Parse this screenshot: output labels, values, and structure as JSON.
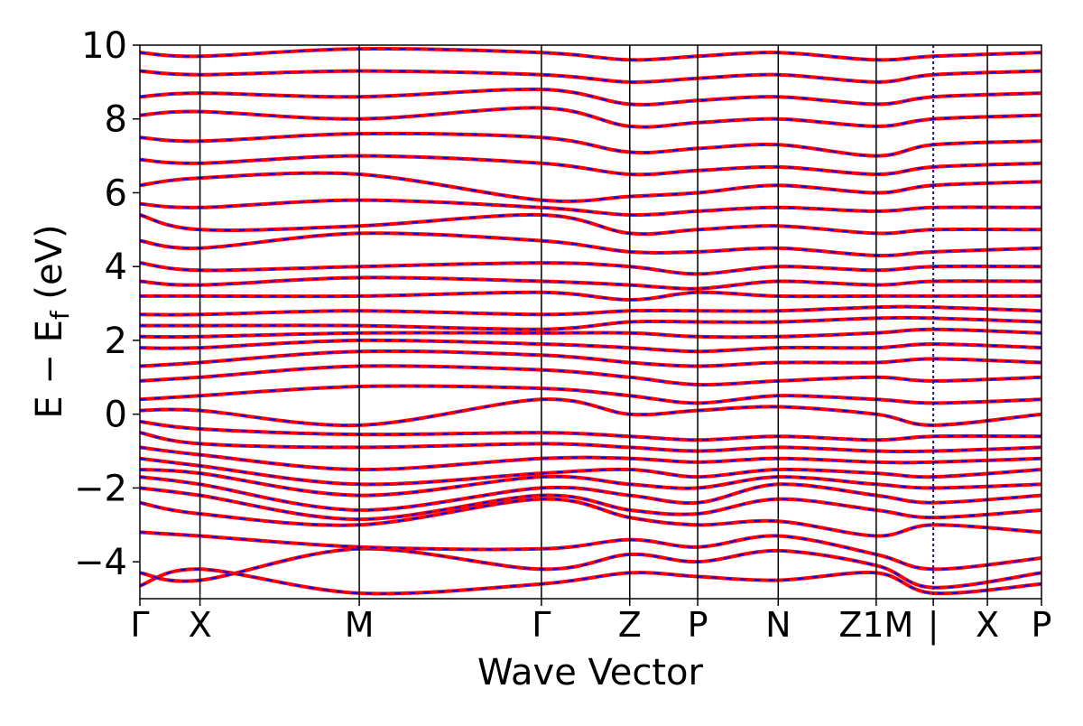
{
  "chart_data": {
    "type": "line",
    "xlabel": "Wave Vector",
    "ylabel": "E − E",
    "ylabel_sub": "f",
    "ylabel_unit": " (eV)",
    "ylim": [
      -5,
      10
    ],
    "yticks": [
      -4,
      -2,
      0,
      2,
      4,
      6,
      8,
      10
    ],
    "ytick_labels": [
      "−4",
      "−2",
      "0",
      "2",
      "4",
      "6",
      "8",
      "10"
    ],
    "xlim": [
      0,
      15
    ],
    "kpoints": [
      {
        "pos": 0.0,
        "label": "Γ"
      },
      {
        "pos": 1.0,
        "label": "X"
      },
      {
        "pos": 3.65,
        "label": "M"
      },
      {
        "pos": 6.68,
        "label": "Γ"
      },
      {
        "pos": 8.15,
        "label": "Z"
      },
      {
        "pos": 9.28,
        "label": "P"
      },
      {
        "pos": 10.62,
        "label": "N"
      },
      {
        "pos": 12.25,
        "label": "Z1M"
      },
      {
        "pos": 13.2,
        "label": "|"
      },
      {
        "pos": 14.1,
        "label": "X"
      },
      {
        "pos": 15.0,
        "label": "P"
      }
    ],
    "series": [
      {
        "color": "#ff0000",
        "style": "solid"
      },
      {
        "color": "#0000ff",
        "style": "dashed"
      }
    ],
    "bands": [
      {
        "x": [
          0,
          1,
          3.65,
          6.68,
          8.15,
          9.28,
          10.62,
          12.25,
          13.2,
          15
        ],
        "y": [
          -4.65,
          -4.2,
          -4.85,
          -4.6,
          -4.3,
          -4.4,
          -4.5,
          -4.3,
          -4.85,
          -4.6
        ]
      },
      {
        "x": [
          0,
          1,
          3.65,
          6.68,
          8.15,
          9.28,
          10.62,
          12.25,
          13.2,
          15
        ],
        "y": [
          -4.3,
          -4.5,
          -3.65,
          -4.2,
          -3.8,
          -4.0,
          -3.7,
          -4.1,
          -4.7,
          -4.3
        ]
      },
      {
        "x": [
          0,
          1,
          3.65,
          6.68,
          8.15,
          9.28,
          10.62,
          12.25,
          13.2,
          15
        ],
        "y": [
          -3.2,
          -3.3,
          -3.6,
          -3.65,
          -3.4,
          -3.6,
          -3.3,
          -3.8,
          -4.2,
          -3.9
        ]
      },
      {
        "x": [
          0,
          1,
          3.65,
          6.68,
          8.15,
          9.28,
          10.62,
          12.25,
          13.2,
          15
        ],
        "y": [
          -2.4,
          -2.7,
          -3.0,
          -2.3,
          -2.8,
          -3.0,
          -2.9,
          -3.3,
          -3.0,
          -3.2
        ]
      },
      {
        "x": [
          0,
          1,
          3.65,
          6.68,
          8.15,
          9.28,
          10.62,
          12.25,
          13.2,
          15
        ],
        "y": [
          -2.0,
          -2.2,
          -2.85,
          -2.2,
          -2.6,
          -2.7,
          -2.3,
          -2.6,
          -2.8,
          -2.6
        ]
      },
      {
        "x": [
          0,
          1,
          3.65,
          6.68,
          8.15,
          9.28,
          10.62,
          12.25,
          13.2,
          15
        ],
        "y": [
          -1.7,
          -1.9,
          -2.6,
          -2.0,
          -2.2,
          -2.4,
          -1.9,
          -2.2,
          -2.4,
          -2.2
        ]
      },
      {
        "x": [
          0,
          1,
          3.65,
          6.68,
          8.15,
          9.28,
          10.62,
          12.25,
          13.2,
          15
        ],
        "y": [
          -1.5,
          -1.6,
          -2.2,
          -1.7,
          -1.9,
          -2.0,
          -1.7,
          -1.9,
          -2.0,
          -1.9
        ]
      },
      {
        "x": [
          0,
          1,
          3.65,
          6.68,
          8.15,
          9.28,
          10.62,
          12.25,
          13.2,
          15
        ],
        "y": [
          -1.2,
          -1.4,
          -1.9,
          -1.6,
          -1.5,
          -1.7,
          -1.5,
          -1.6,
          -1.7,
          -1.5
        ]
      },
      {
        "x": [
          0,
          1,
          3.65,
          6.68,
          8.15,
          9.28,
          10.62,
          12.25,
          13.2,
          15
        ],
        "y": [
          -0.9,
          -1.1,
          -1.5,
          -1.2,
          -1.2,
          -1.3,
          -1.2,
          -1.3,
          -1.3,
          -1.2
        ]
      },
      {
        "x": [
          0,
          1,
          3.65,
          6.68,
          8.15,
          9.28,
          10.62,
          12.25,
          13.2,
          15
        ],
        "y": [
          -0.5,
          -0.8,
          -0.9,
          -0.8,
          -0.9,
          -1.0,
          -0.9,
          -1.0,
          -1.0,
          -0.9
        ]
      },
      {
        "x": [
          0,
          1,
          3.65,
          6.68,
          8.15,
          9.28,
          10.62,
          12.25,
          13.2,
          15
        ],
        "y": [
          -0.2,
          -0.4,
          -0.55,
          -0.5,
          -0.6,
          -0.7,
          -0.6,
          -0.7,
          -0.6,
          -0.6
        ]
      },
      {
        "x": [
          0,
          1,
          3.65,
          6.68,
          8.15,
          9.28,
          10.62,
          12.25,
          13.2,
          15
        ],
        "y": [
          0.1,
          0.1,
          -0.3,
          0.4,
          0.0,
          0.1,
          0.2,
          0.0,
          -0.3,
          0.0
        ]
      },
      {
        "x": [
          0,
          1,
          3.65,
          6.68,
          8.15,
          9.28,
          10.62,
          12.25,
          13.2,
          15
        ],
        "y": [
          0.4,
          0.5,
          0.75,
          0.7,
          0.5,
          0.3,
          0.5,
          0.4,
          0.3,
          0.4
        ]
      },
      {
        "x": [
          0,
          1,
          3.65,
          6.68,
          8.15,
          9.28,
          10.62,
          12.25,
          13.2,
          15
        ],
        "y": [
          0.9,
          1.0,
          1.3,
          1.2,
          1.0,
          0.8,
          0.9,
          1.0,
          0.9,
          1.0
        ]
      },
      {
        "x": [
          0,
          1,
          3.65,
          6.68,
          8.15,
          9.28,
          10.62,
          12.25,
          13.2,
          15
        ],
        "y": [
          1.3,
          1.4,
          1.7,
          1.6,
          1.4,
          1.3,
          1.4,
          1.4,
          1.5,
          1.4
        ]
      },
      {
        "x": [
          0,
          1,
          3.65,
          6.68,
          8.15,
          9.28,
          10.62,
          12.25,
          13.2,
          15
        ],
        "y": [
          1.8,
          1.8,
          2.0,
          1.9,
          1.8,
          1.7,
          1.8,
          1.8,
          1.9,
          1.8
        ]
      },
      {
        "x": [
          0,
          1,
          3.65,
          6.68,
          8.15,
          9.28,
          10.62,
          12.25,
          13.2,
          15
        ],
        "y": [
          2.1,
          2.1,
          2.2,
          2.2,
          2.2,
          2.1,
          2.1,
          2.2,
          2.3,
          2.2
        ]
      },
      {
        "x": [
          0,
          1,
          3.65,
          6.68,
          8.15,
          9.28,
          10.62,
          12.25,
          13.2,
          15
        ],
        "y": [
          2.4,
          2.4,
          2.4,
          2.3,
          2.5,
          2.5,
          2.5,
          2.6,
          2.6,
          2.5
        ]
      },
      {
        "x": [
          0,
          1,
          3.65,
          6.68,
          8.15,
          9.28,
          10.62,
          12.25,
          13.2,
          15
        ],
        "y": [
          2.7,
          2.7,
          2.8,
          2.7,
          2.8,
          2.8,
          2.8,
          2.9,
          2.9,
          2.8
        ]
      },
      {
        "x": [
          0,
          1,
          3.65,
          6.68,
          8.15,
          9.28,
          10.62,
          12.25,
          13.2,
          15
        ],
        "y": [
          3.2,
          3.2,
          3.2,
          3.3,
          3.1,
          3.3,
          3.2,
          3.2,
          3.2,
          3.2
        ]
      },
      {
        "x": [
          0,
          1,
          3.65,
          6.68,
          8.15,
          9.28,
          10.62,
          12.25,
          13.2,
          15
        ],
        "y": [
          3.6,
          3.5,
          3.7,
          3.6,
          3.5,
          3.4,
          3.6,
          3.5,
          3.6,
          3.6
        ]
      },
      {
        "x": [
          0,
          1,
          3.65,
          6.68,
          8.15,
          9.28,
          10.62,
          12.25,
          13.2,
          15
        ],
        "y": [
          4.1,
          3.9,
          4.0,
          4.1,
          4.0,
          3.8,
          4.0,
          3.9,
          4.0,
          4.0
        ]
      },
      {
        "x": [
          0,
          1,
          3.65,
          6.68,
          8.15,
          9.28,
          10.62,
          12.25,
          13.2,
          15
        ],
        "y": [
          4.7,
          4.5,
          4.9,
          4.7,
          4.4,
          4.4,
          4.5,
          4.3,
          4.4,
          4.5
        ]
      },
      {
        "x": [
          0,
          1,
          3.65,
          6.68,
          8.15,
          9.28,
          10.62,
          12.25,
          13.2,
          15
        ],
        "y": [
          5.4,
          5.0,
          5.1,
          5.4,
          4.9,
          5.0,
          5.1,
          4.9,
          5.0,
          5.0
        ]
      },
      {
        "x": [
          0,
          1,
          3.65,
          6.68,
          8.15,
          9.28,
          10.62,
          12.25,
          13.2,
          15
        ],
        "y": [
          5.7,
          5.6,
          5.8,
          5.6,
          5.4,
          5.5,
          5.6,
          5.5,
          5.6,
          5.6
        ]
      },
      {
        "x": [
          0,
          1,
          3.65,
          6.68,
          8.15,
          9.28,
          10.62,
          12.25,
          13.2,
          15
        ],
        "y": [
          6.2,
          6.4,
          6.5,
          5.8,
          5.9,
          6.0,
          6.2,
          6.0,
          6.2,
          6.3
        ]
      },
      {
        "x": [
          0,
          1,
          3.65,
          6.68,
          8.15,
          9.28,
          10.62,
          12.25,
          13.2,
          15
        ],
        "y": [
          6.9,
          6.8,
          7.0,
          6.8,
          6.5,
          6.6,
          6.7,
          6.5,
          6.7,
          6.8
        ]
      },
      {
        "x": [
          0,
          1,
          3.65,
          6.68,
          8.15,
          9.28,
          10.62,
          12.25,
          13.2,
          15
        ],
        "y": [
          7.5,
          7.4,
          7.6,
          7.5,
          7.1,
          7.2,
          7.3,
          7.0,
          7.3,
          7.4
        ]
      },
      {
        "x": [
          0,
          1,
          3.65,
          6.68,
          8.15,
          9.28,
          10.62,
          12.25,
          13.2,
          15
        ],
        "y": [
          8.1,
          8.2,
          8.0,
          8.3,
          7.8,
          7.9,
          8.0,
          7.8,
          8.0,
          8.1
        ]
      },
      {
        "x": [
          0,
          1,
          3.65,
          6.68,
          8.15,
          9.28,
          10.62,
          12.25,
          13.2,
          15
        ],
        "y": [
          8.6,
          8.7,
          8.6,
          8.8,
          8.4,
          8.5,
          8.6,
          8.4,
          8.6,
          8.7
        ]
      },
      {
        "x": [
          0,
          1,
          3.65,
          6.68,
          8.15,
          9.28,
          10.62,
          12.25,
          13.2,
          15
        ],
        "y": [
          9.3,
          9.2,
          9.3,
          9.2,
          9.0,
          9.1,
          9.2,
          9.0,
          9.2,
          9.3
        ]
      },
      {
        "x": [
          0,
          1,
          3.65,
          6.68,
          8.15,
          9.28,
          10.62,
          12.25,
          13.2,
          15
        ],
        "y": [
          9.8,
          9.7,
          9.9,
          9.8,
          9.6,
          9.7,
          9.8,
          9.6,
          9.7,
          9.8
        ]
      }
    ]
  }
}
